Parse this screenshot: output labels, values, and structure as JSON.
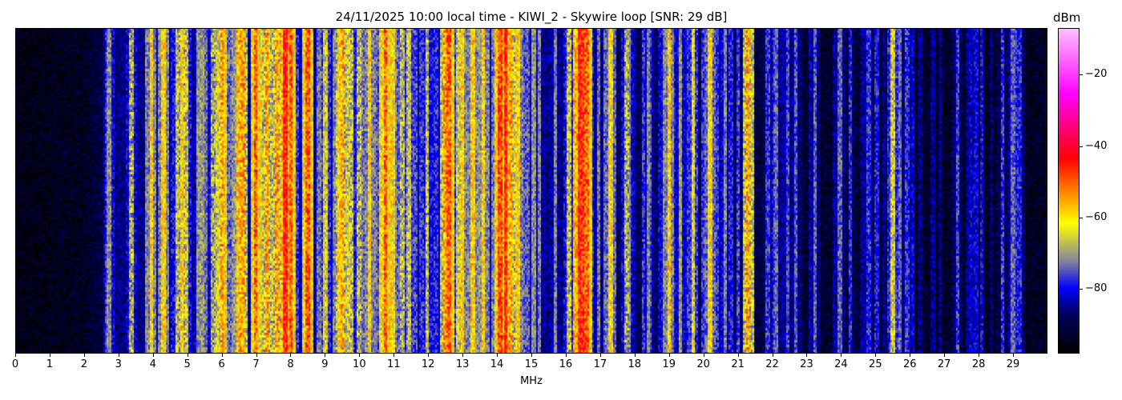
{
  "chart_data": {
    "type": "heatmap",
    "title": "24/11/2025 10:00 local time - KIWI_2 - Skywire loop [SNR: 29 dB]",
    "xlabel": "MHz",
    "xlim": [
      0,
      30
    ],
    "xticks": [
      0,
      1,
      2,
      3,
      4,
      5,
      6,
      7,
      8,
      9,
      10,
      11,
      12,
      13,
      14,
      15,
      16,
      17,
      18,
      19,
      20,
      21,
      22,
      23,
      24,
      25,
      26,
      27,
      28,
      29
    ],
    "colorbar": {
      "label": "dBm",
      "range": [
        -98,
        -7
      ],
      "ticks": [
        -20,
        -40,
        -60,
        -80
      ],
      "tick_labels": [
        "−20",
        "−40",
        "−60",
        "−80"
      ],
      "colormap": [
        "#000000",
        "#000060",
        "#0000ff",
        "#8080a0",
        "#ffff00",
        "#ff8000",
        "#ff0000",
        "#ff00ff",
        "#ffc0ff"
      ]
    },
    "noise_floor_dbm": [
      [
        0,
        -96
      ],
      [
        2,
        -94
      ],
      [
        3,
        -86
      ],
      [
        8,
        -84
      ],
      [
        15,
        -85
      ],
      [
        17,
        -88
      ],
      [
        21.5,
        -90
      ],
      [
        22,
        -92
      ],
      [
        30,
        -94
      ]
    ],
    "signals": [
      {
        "mhz": 3.95,
        "dbm": -60
      },
      {
        "mhz": 4.3,
        "dbm": -60
      },
      {
        "mhz": 4.85,
        "dbm": -60
      },
      {
        "mhz": 5.9,
        "dbm": -65
      },
      {
        "mhz": 6.0,
        "dbm": -55
      },
      {
        "mhz": 6.1,
        "dbm": -62
      },
      {
        "mhz": 6.5,
        "dbm": -58
      },
      {
        "mhz": 6.6,
        "dbm": -55
      },
      {
        "mhz": 7.0,
        "dbm": -50
      },
      {
        "mhz": 7.3,
        "dbm": -55
      },
      {
        "mhz": 7.6,
        "dbm": -55
      },
      {
        "mhz": 7.85,
        "dbm": -45
      },
      {
        "mhz": 8.0,
        "dbm": -50
      },
      {
        "mhz": 8.5,
        "dbm": -50
      },
      {
        "mhz": 9.4,
        "dbm": -60
      },
      {
        "mhz": 9.5,
        "dbm": -56
      },
      {
        "mhz": 10.3,
        "dbm": -60
      },
      {
        "mhz": 10.75,
        "dbm": -50
      },
      {
        "mhz": 10.9,
        "dbm": -60
      },
      {
        "mhz": 11.0,
        "dbm": -62
      },
      {
        "mhz": 12.5,
        "dbm": -55
      },
      {
        "mhz": 12.6,
        "dbm": -50
      },
      {
        "mhz": 13.0,
        "dbm": -60
      },
      {
        "mhz": 13.3,
        "dbm": -60
      },
      {
        "mhz": 13.6,
        "dbm": -60
      },
      {
        "mhz": 14.1,
        "dbm": -48
      },
      {
        "mhz": 14.25,
        "dbm": -45
      },
      {
        "mhz": 14.4,
        "dbm": -55
      },
      {
        "mhz": 14.6,
        "dbm": -60
      },
      {
        "mhz": 16.4,
        "dbm": -45
      },
      {
        "mhz": 16.5,
        "dbm": -47
      },
      {
        "mhz": 16.6,
        "dbm": -50
      },
      {
        "mhz": 17.3,
        "dbm": -62
      },
      {
        "mhz": 19.0,
        "dbm": -60
      },
      {
        "mhz": 19.7,
        "dbm": -65
      },
      {
        "mhz": 20.2,
        "dbm": -62
      },
      {
        "mhz": 21.3,
        "dbm": -55
      },
      {
        "mhz": 22.7,
        "dbm": -75
      },
      {
        "mhz": 25.5,
        "dbm": -66
      },
      {
        "mhz": 29.0,
        "dbm": -74
      },
      {
        "mhz": 29.2,
        "dbm": -78
      }
    ]
  }
}
